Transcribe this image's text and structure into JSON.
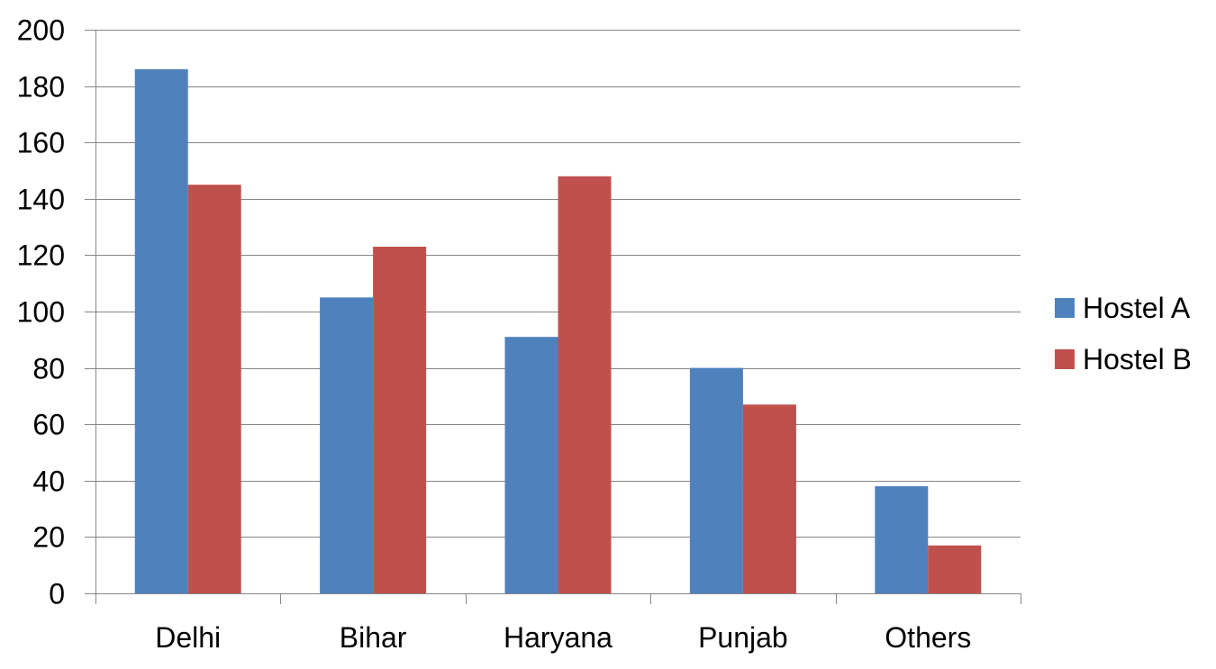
{
  "chart_data": {
    "type": "bar",
    "title": "",
    "xlabel": "",
    "ylabel": "",
    "categories": [
      "Delhi",
      "Bihar",
      "Haryana",
      "Punjab",
      "Others"
    ],
    "series": [
      {
        "name": "Hostel A",
        "color": "#4F81BD",
        "values": [
          186,
          105,
          91,
          80,
          38
        ]
      },
      {
        "name": "Hostel B",
        "color": "#C0504D",
        "values": [
          145,
          123,
          148,
          67,
          17
        ]
      }
    ],
    "ylim": [
      0,
      200
    ],
    "yticks": [
      0,
      20,
      40,
      60,
      80,
      100,
      120,
      140,
      160,
      180,
      200
    ],
    "ytick_labels": [
      "0",
      "20",
      "40",
      "60",
      "80",
      "100",
      "120",
      "140",
      "160",
      "180",
      "200"
    ],
    "grid": true,
    "legend_position": "right"
  }
}
